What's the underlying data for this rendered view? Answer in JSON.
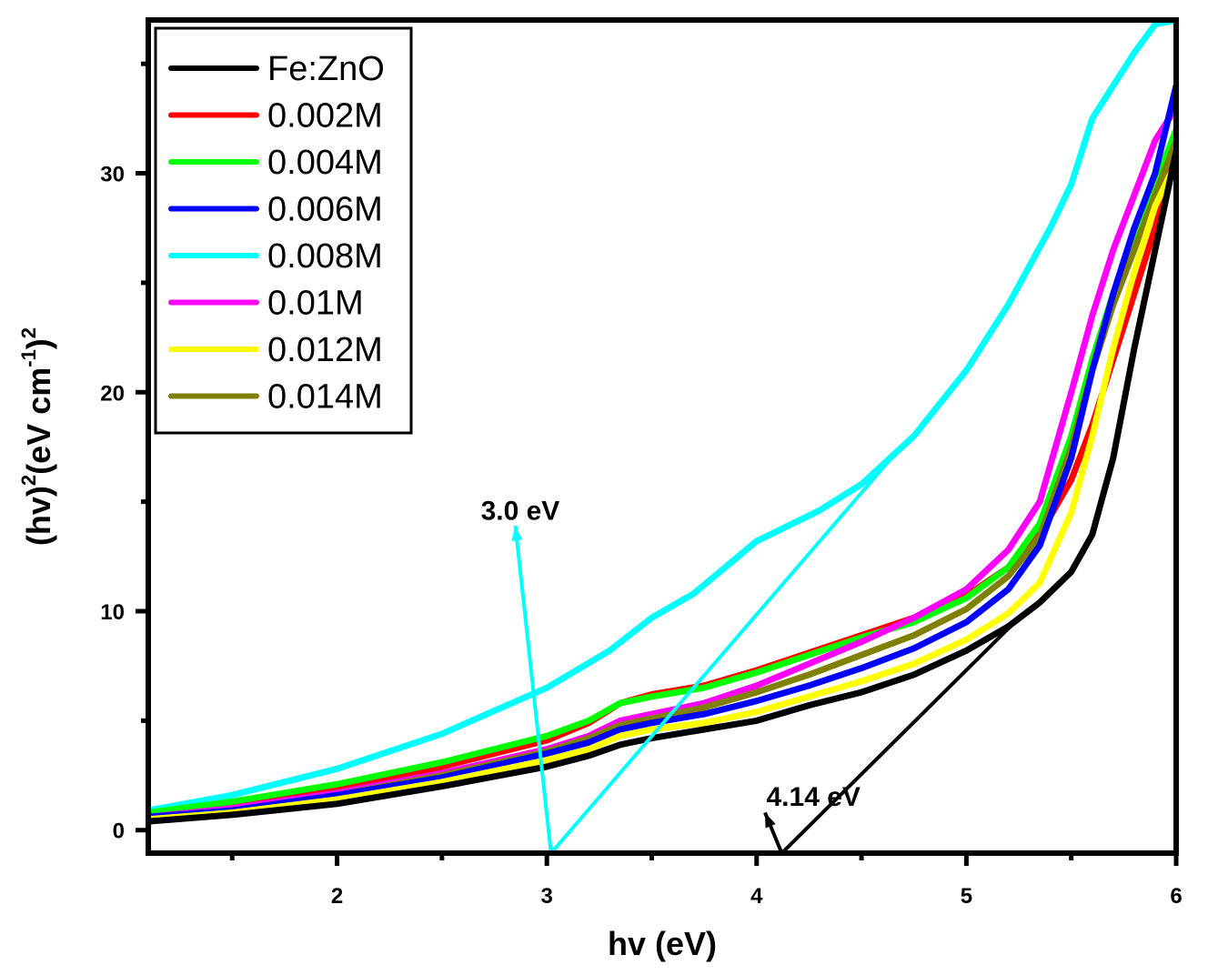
{
  "chart_data": {
    "type": "line",
    "title": "",
    "xlabel": "hv (eV)",
    "ylabel_parts": {
      "base": "(hv)",
      "sup1": "2",
      "mid": "(eV cm",
      "sup2": "-1",
      "close": ")",
      "sup3": "2"
    },
    "ylabel": "(hv)^2(eV cm^-1)^2",
    "xlim": [
      1.1,
      6.0
    ],
    "ylim": [
      -1.05,
      37.0
    ],
    "x_major_ticks": [
      2,
      3,
      4,
      5,
      6
    ],
    "x_minor_ticks": [
      1.5,
      2.5,
      3.5,
      4.5,
      5.5
    ],
    "y_major_ticks": [
      0,
      10,
      20,
      30
    ],
    "y_minor_ticks": [
      5,
      15,
      25,
      35
    ],
    "x_tick_labels": [
      "2",
      "3",
      "4",
      "5",
      "6"
    ],
    "y_tick_labels": [
      "0",
      "10",
      "20",
      "30"
    ],
    "grid": false,
    "legend_position": "top-left",
    "series": [
      {
        "name": "Fe:ZnO",
        "color": "#000000",
        "x": [
          1.1,
          1.5,
          2.0,
          2.5,
          3.0,
          3.2,
          3.35,
          3.5,
          3.75,
          4.0,
          4.25,
          4.5,
          4.75,
          5.0,
          5.2,
          5.35,
          5.5,
          5.6,
          5.7,
          5.8,
          5.9,
          6.0
        ],
        "y": [
          0.4,
          0.7,
          1.2,
          2.0,
          2.9,
          3.4,
          3.9,
          4.2,
          4.6,
          5.0,
          5.7,
          6.3,
          7.1,
          8.2,
          9.3,
          10.4,
          11.8,
          13.5,
          17.0,
          22.0,
          26.5,
          31.0
        ]
      },
      {
        "name": "0.002M",
        "color": "#ff0000",
        "x": [
          1.1,
          1.5,
          2.0,
          2.5,
          3.0,
          3.2,
          3.35,
          3.5,
          3.75,
          4.0,
          4.25,
          4.5,
          4.75,
          5.0,
          5.2,
          5.35,
          5.5,
          5.6,
          5.7,
          5.8,
          5.9,
          6.0
        ],
        "y": [
          0.7,
          1.1,
          1.9,
          2.9,
          4.1,
          4.9,
          5.8,
          6.2,
          6.6,
          7.3,
          8.1,
          8.9,
          9.7,
          10.7,
          12.0,
          13.5,
          16.0,
          18.5,
          21.5,
          24.5,
          27.5,
          31.0
        ]
      },
      {
        "name": "0.004M",
        "color": "#00ff00",
        "x": [
          1.1,
          1.5,
          2.0,
          2.5,
          3.0,
          3.2,
          3.35,
          3.5,
          3.75,
          4.0,
          4.25,
          4.5,
          4.75,
          5.0,
          5.2,
          5.35,
          5.5,
          5.6,
          5.7,
          5.8,
          5.9,
          6.0
        ],
        "y": [
          0.8,
          1.3,
          2.1,
          3.1,
          4.3,
          5.0,
          5.8,
          6.1,
          6.5,
          7.2,
          8.0,
          8.8,
          9.5,
          10.6,
          12.0,
          14.0,
          18.0,
          21.5,
          24.5,
          27.0,
          29.5,
          32.0
        ]
      },
      {
        "name": "0.006M",
        "color": "#0000ff",
        "x": [
          1.1,
          1.5,
          2.0,
          2.5,
          3.0,
          3.2,
          3.35,
          3.5,
          3.75,
          4.0,
          4.25,
          4.5,
          4.75,
          5.0,
          5.2,
          5.35,
          5.5,
          5.6,
          5.7,
          5.8,
          5.9,
          6.0
        ],
        "y": [
          0.6,
          0.9,
          1.6,
          2.4,
          3.5,
          4.0,
          4.6,
          4.9,
          5.3,
          5.9,
          6.6,
          7.4,
          8.3,
          9.5,
          11.0,
          13.0,
          17.0,
          21.0,
          24.5,
          27.5,
          30.0,
          34.0
        ]
      },
      {
        "name": "0.008M",
        "color": "#00ffff",
        "x": [
          1.1,
          1.5,
          2.0,
          2.5,
          3.0,
          3.3,
          3.5,
          3.7,
          4.0,
          4.3,
          4.5,
          4.75,
          5.0,
          5.2,
          5.4,
          5.5,
          5.6,
          5.7,
          5.8,
          5.9,
          6.0
        ],
        "y": [
          0.9,
          1.6,
          2.8,
          4.4,
          6.5,
          8.2,
          9.7,
          10.8,
          13.2,
          14.6,
          15.8,
          18.0,
          21.0,
          24.0,
          27.5,
          29.5,
          32.5,
          34.0,
          35.5,
          36.8,
          37.0
        ]
      },
      {
        "name": "0.01M",
        "color": "#ff00ff",
        "x": [
          1.1,
          1.5,
          2.0,
          2.5,
          3.0,
          3.2,
          3.35,
          3.5,
          3.75,
          4.0,
          4.25,
          4.5,
          4.75,
          5.0,
          5.2,
          5.35,
          5.5,
          5.6,
          5.7,
          5.8,
          5.9,
          6.0
        ],
        "y": [
          0.6,
          1.0,
          1.7,
          2.6,
          3.7,
          4.3,
          5.0,
          5.3,
          5.8,
          6.6,
          7.6,
          8.6,
          9.7,
          11.0,
          12.8,
          15.0,
          20.0,
          23.5,
          26.5,
          29.0,
          31.5,
          33.0
        ]
      },
      {
        "name": "0.012M",
        "color": "#ffff00",
        "x": [
          1.1,
          1.5,
          2.0,
          2.5,
          3.0,
          3.2,
          3.35,
          3.5,
          3.75,
          4.0,
          4.25,
          4.5,
          4.75,
          5.0,
          5.2,
          5.35,
          5.5,
          5.6,
          5.7,
          5.8,
          5.9,
          6.0
        ],
        "y": [
          0.5,
          0.8,
          1.4,
          2.2,
          3.2,
          3.7,
          4.3,
          4.6,
          4.9,
          5.4,
          6.1,
          6.8,
          7.6,
          8.7,
          9.9,
          11.3,
          14.5,
          18.0,
          22.0,
          25.5,
          28.5,
          30.5
        ]
      },
      {
        "name": "0.014M",
        "color": "#808000",
        "x": [
          1.1,
          1.5,
          2.0,
          2.5,
          3.0,
          3.2,
          3.35,
          3.5,
          3.75,
          4.0,
          4.25,
          4.5,
          4.75,
          5.0,
          5.2,
          5.35,
          5.5,
          5.6,
          5.7,
          5.8,
          5.9,
          6.0
        ],
        "y": [
          0.6,
          0.9,
          1.6,
          2.5,
          3.6,
          4.2,
          4.8,
          5.1,
          5.6,
          6.3,
          7.1,
          8.0,
          8.9,
          10.1,
          11.6,
          13.4,
          17.5,
          21.0,
          24.0,
          26.5,
          29.0,
          31.5
        ]
      }
    ],
    "annotations": [
      {
        "text": "3.0 eV",
        "color": "#00ffff",
        "tangent_line": {
          "x": [
            3.02,
            4.67
          ],
          "y": [
            -1.05,
            17.3
          ]
        },
        "arrow": {
          "from": [
            3.02,
            -1.05
          ],
          "to": [
            2.85,
            13.9
          ]
        },
        "label_at": [
          2.85,
          14.8
        ]
      },
      {
        "text": "4.14 eV",
        "color": "#000000",
        "tangent_line": {
          "x": [
            4.12,
            5.22
          ],
          "y": [
            -1.05,
            9.4
          ]
        },
        "arrow": {
          "from": [
            4.12,
            -1.05
          ],
          "to": [
            4.04,
            0.8
          ]
        },
        "label_at": [
          4.35,
          1.6
        ]
      }
    ]
  }
}
